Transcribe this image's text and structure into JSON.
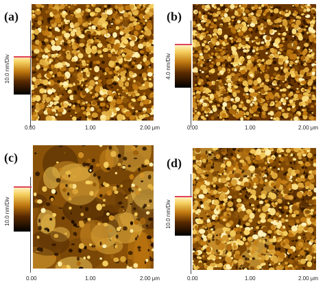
{
  "panels": [
    {
      "id": "a",
      "label": "(a)",
      "scale": "10.0 nm/Div",
      "ticks": [
        "0.00",
        "1.00",
        "2.00 μm"
      ],
      "texture": "fine-grain"
    },
    {
      "id": "b",
      "label": "(b)",
      "scale": "4.0 nm/Div",
      "ticks": [
        "0.00",
        "1.00",
        "2.00 μm"
      ],
      "texture": "fine-grain"
    },
    {
      "id": "c",
      "label": "(c)",
      "scale": "10.0 nm/Div",
      "ticks": [
        "0.00",
        "1.00",
        "2.00 μm"
      ],
      "texture": "coarse-aggregates"
    },
    {
      "id": "d",
      "label": "(d)",
      "scale": "10.0 nm/Div",
      "ticks": [
        "0.00",
        "1.00",
        "2.00 μm"
      ],
      "texture": "mixed-grain"
    }
  ],
  "colors": {
    "afm_dark": "#3a1a00",
    "afm_mid": "#c07810",
    "afm_light": "#f5d060",
    "afm_highlight": "#fff4c0",
    "marker": "#e0405a"
  }
}
